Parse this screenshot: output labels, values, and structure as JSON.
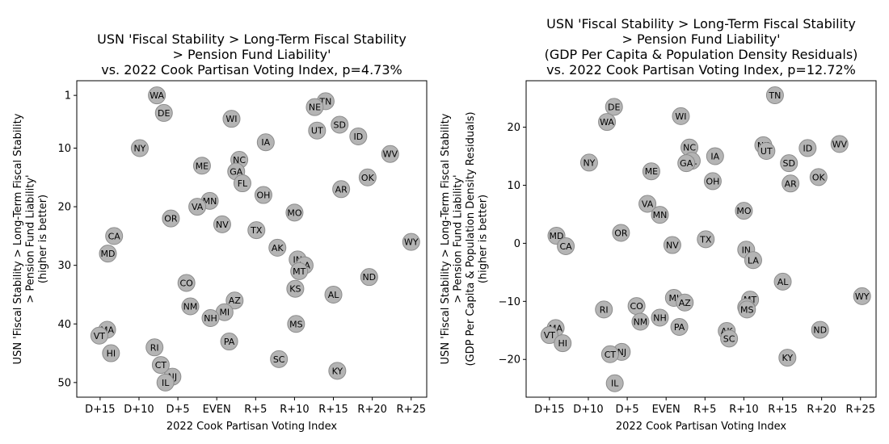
{
  "chart_data": [
    {
      "type": "scatter",
      "title": [
        "USN 'Fiscal Stability > Long-Term Fiscal Stability",
        "> Pension Fund Liability'",
        "vs. 2022 Cook Partisan Voting Index, p=4.73%"
      ],
      "xlabel": "2022 Cook Partisan Voting Index",
      "ylabel": [
        "USN 'Fiscal Stability > Long-Term Fiscal Stability",
        "> Pension Fund Liability'",
        "(higher is better)"
      ],
      "xlim": [
        -18,
        27
      ],
      "ylim": [
        52.5,
        -1.5
      ],
      "y_inverted": true,
      "grid": false,
      "x_ticks": [
        -15,
        -10,
        -5,
        0,
        5,
        10,
        15,
        20,
        25
      ],
      "x_tick_labels": [
        "D+15",
        "D+10",
        "D+5",
        "EVEN",
        "R+5",
        "R+10",
        "R+15",
        "R+20",
        "R+25"
      ],
      "y_ticks": [
        1,
        10,
        20,
        30,
        40,
        50
      ],
      "y_tick_labels": [
        "1",
        "10",
        "20",
        "30",
        "40",
        "50"
      ],
      "points": [
        {
          "label": "WA",
          "x": -7.7,
          "y": 1
        },
        {
          "label": "TN",
          "x": 14.0,
          "y": 2
        },
        {
          "label": "NE",
          "x": 12.6,
          "y": 3
        },
        {
          "label": "DE",
          "x": -6.8,
          "y": 4
        },
        {
          "label": "WI",
          "x": 1.9,
          "y": 5
        },
        {
          "label": "SD",
          "x": 15.8,
          "y": 6
        },
        {
          "label": "UT",
          "x": 12.9,
          "y": 7
        },
        {
          "label": "ID",
          "x": 18.2,
          "y": 8
        },
        {
          "label": "IA",
          "x": 6.3,
          "y": 9
        },
        {
          "label": "NY",
          "x": -9.9,
          "y": 10
        },
        {
          "label": "WV",
          "x": 22.3,
          "y": 11
        },
        {
          "label": "NC",
          "x": 2.9,
          "y": 12
        },
        {
          "label": "ME",
          "x": -1.9,
          "y": 13
        },
        {
          "label": "GA",
          "x": 2.5,
          "y": 14
        },
        {
          "label": "OK",
          "x": 19.4,
          "y": 15
        },
        {
          "label": "FL",
          "x": 3.3,
          "y": 16
        },
        {
          "label": "AR",
          "x": 16.0,
          "y": 17
        },
        {
          "label": "OH",
          "x": 6.0,
          "y": 18
        },
        {
          "label": "MN",
          "x": -0.9,
          "y": 19
        },
        {
          "label": "VA",
          "x": -2.5,
          "y": 20
        },
        {
          "label": "MO",
          "x": 10.0,
          "y": 21
        },
        {
          "label": "OR",
          "x": -5.9,
          "y": 22
        },
        {
          "label": "NV",
          "x": 0.7,
          "y": 23
        },
        {
          "label": "TX",
          "x": 5.1,
          "y": 24
        },
        {
          "label": "CA",
          "x": -13.2,
          "y": 25
        },
        {
          "label": "WY",
          "x": 25.0,
          "y": 26
        },
        {
          "label": "AK",
          "x": 7.8,
          "y": 27
        },
        {
          "label": "MD",
          "x": -14.0,
          "y": 28
        },
        {
          "label": "IN",
          "x": 10.4,
          "y": 29
        },
        {
          "label": "LA",
          "x": 11.3,
          "y": 30
        },
        {
          "label": "MT",
          "x": 10.6,
          "y": 31
        },
        {
          "label": "ND",
          "x": 19.6,
          "y": 32
        },
        {
          "label": "CO",
          "x": -3.9,
          "y": 33
        },
        {
          "label": "KS",
          "x": 10.1,
          "y": 34
        },
        {
          "label": "KY",
          "x": 15.5,
          "y": 48
        },
        {
          "label": "NJ",
          "x": -5.7,
          "y": 49
        },
        {
          "label": "IL",
          "x": -6.6,
          "y": 50
        },
        {
          "label": "AL",
          "x": 15.0,
          "y": 35
        },
        {
          "label": "AZ",
          "x": 2.3,
          "y": 36
        },
        {
          "label": "NM",
          "x": -3.4,
          "y": 37
        },
        {
          "label": "MI",
          "x": 1.0,
          "y": 38
        },
        {
          "label": "NH",
          "x": -0.8,
          "y": 39
        },
        {
          "label": "MS",
          "x": 10.2,
          "y": 40
        },
        {
          "label": "MA",
          "x": -14.1,
          "y": 41
        },
        {
          "label": "VT",
          "x": -15.1,
          "y": 42
        },
        {
          "label": "PA",
          "x": 1.6,
          "y": 43
        },
        {
          "label": "RI",
          "x": -8.0,
          "y": 44
        },
        {
          "label": "HI",
          "x": -13.6,
          "y": 45
        },
        {
          "label": "SC",
          "x": 8.0,
          "y": 46
        },
        {
          "label": "CT",
          "x": -7.2,
          "y": 47
        }
      ]
    },
    {
      "type": "scatter",
      "title": [
        "USN 'Fiscal Stability > Long-Term Fiscal Stability",
        "> Pension Fund Liability'",
        "(GDP Per Capita & Population Density Residuals)",
        "vs. 2022 Cook Partisan Voting Index, p=12.72%"
      ],
      "xlabel": "2022 Cook Partisan Voting Index",
      "ylabel": [
        "USN 'Fiscal Stability > Long-Term Fiscal Stability",
        "> Pension Fund Liability'",
        "(GDP Per Capita & Population Density Residuals)",
        "(higher is better)"
      ],
      "xlim": [
        -18,
        27
      ],
      "ylim": [
        -26.5,
        28
      ],
      "y_inverted": false,
      "grid": false,
      "x_ticks": [
        -15,
        -10,
        -5,
        0,
        5,
        10,
        15,
        20,
        25
      ],
      "x_tick_labels": [
        "D+15",
        "D+10",
        "D+5",
        "EVEN",
        "R+5",
        "R+10",
        "R+15",
        "R+20",
        "R+25"
      ],
      "y_ticks": [
        -20,
        -10,
        0,
        10,
        20
      ],
      "y_tick_labels": [
        "−20",
        "−10",
        "0",
        "10",
        "20"
      ],
      "points": [
        {
          "label": "TN",
          "x": 14.0,
          "y": 25.5
        },
        {
          "label": "DE",
          "x": -6.7,
          "y": 23.5
        },
        {
          "label": "WI",
          "x": 1.9,
          "y": 21.9
        },
        {
          "label": "WA",
          "x": -7.6,
          "y": 20.9
        },
        {
          "label": "WV",
          "x": 22.3,
          "y": 17.1
        },
        {
          "label": "NE",
          "x": 12.5,
          "y": 16.9
        },
        {
          "label": "NC",
          "x": 3.0,
          "y": 16.5
        },
        {
          "label": "ID",
          "x": 18.2,
          "y": 16.4
        },
        {
          "label": "UT",
          "x": 12.9,
          "y": 15.9
        },
        {
          "label": "IA",
          "x": 6.3,
          "y": 15.0
        },
        {
          "label": "FL",
          "x": 3.3,
          "y": 14.2
        },
        {
          "label": "GA",
          "x": 2.6,
          "y": 13.8
        },
        {
          "label": "NY",
          "x": -9.9,
          "y": 13.9
        },
        {
          "label": "SD",
          "x": 15.8,
          "y": 13.8
        },
        {
          "label": "ME",
          "x": -1.9,
          "y": 12.4
        },
        {
          "label": "OK",
          "x": 19.6,
          "y": 11.4
        },
        {
          "label": "OH",
          "x": 6.0,
          "y": 10.7
        },
        {
          "label": "AR",
          "x": 16.0,
          "y": 10.3
        },
        {
          "label": "VA",
          "x": -2.4,
          "y": 6.8
        },
        {
          "label": "MO",
          "x": 10.0,
          "y": 5.6
        },
        {
          "label": "MN",
          "x": -0.8,
          "y": 4.9
        },
        {
          "label": "OR",
          "x": -5.8,
          "y": 1.8
        },
        {
          "label": "MD",
          "x": -14.1,
          "y": 1.3
        },
        {
          "label": "TX",
          "x": 5.1,
          "y": 0.7
        },
        {
          "label": "CA",
          "x": -12.9,
          "y": -0.5
        },
        {
          "label": "NV",
          "x": 0.8,
          "y": -0.3
        },
        {
          "label": "IN",
          "x": 10.3,
          "y": -1.1
        },
        {
          "label": "LA",
          "x": 11.2,
          "y": -2.9
        },
        {
          "label": "AL",
          "x": 15.0,
          "y": -6.6
        },
        {
          "label": "WY",
          "x": 25.2,
          "y": -9.1
        },
        {
          "label": "MI",
          "x": 1.0,
          "y": -9.4
        },
        {
          "label": "MT",
          "x": 10.8,
          "y": -9.7
        },
        {
          "label": "AZ",
          "x": 2.4,
          "y": -10.2
        },
        {
          "label": "CO",
          "x": -3.8,
          "y": -10.8
        },
        {
          "label": "KS",
          "x": 10.3,
          "y": -11.0
        },
        {
          "label": "MS",
          "x": 10.4,
          "y": -11.4
        },
        {
          "label": "RI",
          "x": -8.0,
          "y": -11.4
        },
        {
          "label": "NH",
          "x": -0.8,
          "y": -12.8
        },
        {
          "label": "NM",
          "x": -3.3,
          "y": -13.5
        },
        {
          "label": "PA",
          "x": 1.7,
          "y": -14.4
        },
        {
          "label": "MA",
          "x": -14.2,
          "y": -14.6
        },
        {
          "label": "ND",
          "x": 19.8,
          "y": -14.9
        },
        {
          "label": "AK",
          "x": 7.8,
          "y": -15.1
        },
        {
          "label": "VT",
          "x": -15.0,
          "y": -15.8
        },
        {
          "label": "SC",
          "x": 8.1,
          "y": -16.4
        },
        {
          "label": "HI",
          "x": -13.3,
          "y": -17.2
        },
        {
          "label": "NJ",
          "x": -5.7,
          "y": -18.7
        },
        {
          "label": "CT",
          "x": -7.2,
          "y": -19.1
        },
        {
          "label": "KY",
          "x": 15.6,
          "y": -19.7
        },
        {
          "label": "IL",
          "x": -6.6,
          "y": -24.1
        }
      ]
    }
  ]
}
